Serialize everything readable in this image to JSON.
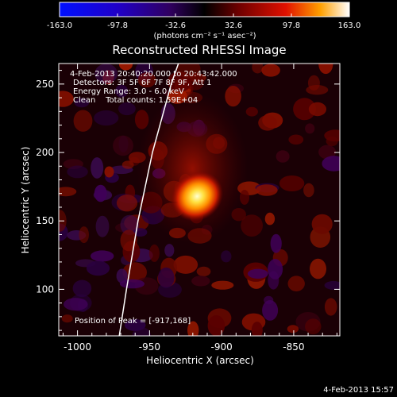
{
  "chart_data": {
    "type": "heatmap",
    "title": "Reconstructed RHESSI Image",
    "xlabel": "Heliocentric X (arcsec)",
    "ylabel": "Heliocentric Y (arcsec)",
    "xlim": [
      -1013,
      -818
    ],
    "ylim": [
      66,
      265
    ],
    "x_ticks": [
      "-1000",
      "-950",
      "-900",
      "-850"
    ],
    "x_tick_values": [
      -1000,
      -950,
      -900,
      -850
    ],
    "y_ticks": [
      "100",
      "150",
      "200",
      "250"
    ],
    "y_tick_values": [
      100,
      150,
      200,
      250
    ],
    "colorbar": {
      "min": -163.0,
      "max": 163.0,
      "tick_labels": [
        "-163.0",
        "-97.8",
        "-32.6",
        "32.6",
        "97.8",
        "163.0"
      ],
      "tick_values": [
        -163.0,
        -97.8,
        -32.6,
        32.6,
        97.8,
        163.0
      ],
      "unit_label": "(photons cm⁻² s⁻¹ asec⁻²)"
    },
    "peak": {
      "x": -917,
      "y": 168,
      "value": 163.0
    },
    "limb_curve": [
      [
        -971,
        66
      ],
      [
        -966,
        100
      ],
      [
        -958,
        150
      ],
      [
        -948,
        200
      ],
      [
        -935,
        250
      ],
      [
        -930,
        265
      ]
    ],
    "annotations": [
      "4-Feb-2013 20:40:20.000 to 20:43:42.000",
      "Detectors: 3F 5F 6F 7F 8F 9F, Att 1",
      "Energy Range: 3.0 - 6.0 keV",
      "Clean    Total counts: 1.59E+04",
      "Position of Peak = [-917,168]"
    ]
  },
  "footer": {
    "timestamp": "4-Feb-2013 15:57"
  },
  "colors": {
    "background": "#000000",
    "axes": "#ffffff",
    "limb": "#ffffff",
    "peak": "#ffffa0"
  }
}
